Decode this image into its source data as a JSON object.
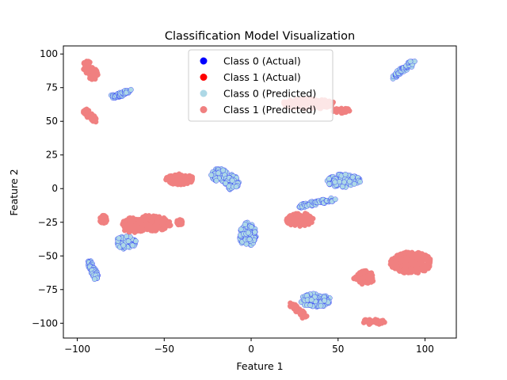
{
  "chart_data": {
    "type": "scatter",
    "title": "Classification Model Visualization",
    "xlabel": "Feature 1",
    "ylabel": "Feature 2",
    "xlim": [
      -108,
      118
    ],
    "ylim": [
      -111,
      106
    ],
    "xticks": [
      -100,
      -50,
      0,
      50,
      100
    ],
    "yticks": [
      -100,
      -75,
      -50,
      -25,
      0,
      25,
      50,
      75,
      100
    ],
    "grid": false,
    "legend_position": "top-center",
    "legend": [
      {
        "label": "Class 0 (Actual)",
        "color": "#0000ff"
      },
      {
        "label": "Class 1 (Actual)",
        "color": "#ff0000"
      },
      {
        "label": "Class 0 (Predicted)",
        "color": "#add8e6"
      },
      {
        "label": "Class 1 (Predicted)",
        "color": "#f08080"
      }
    ],
    "series": [
      {
        "name": "Class 0 (Predicted)",
        "color": "#add8e6",
        "outline": "#0000ff",
        "clusters": [
          {
            "type": "segment",
            "from": [
              -80,
              68
            ],
            "to": [
              -70,
              72
            ],
            "width": 3
          },
          {
            "type": "segment",
            "from": [
              82,
              83
            ],
            "to": [
              93,
              94
            ],
            "width": 3
          },
          {
            "type": "segment",
            "from": [
              -93,
              -55
            ],
            "to": [
              -89,
              -66
            ],
            "width": 3
          },
          {
            "type": "segment",
            "from": [
              28,
              -13
            ],
            "to": [
              47,
              -8
            ],
            "width": 3
          },
          {
            "type": "blob",
            "center": [
              -18,
              10
            ],
            "r": [
              5,
              5
            ]
          },
          {
            "type": "blob",
            "center": [
              -11,
              5
            ],
            "r": [
              4,
              6
            ]
          },
          {
            "type": "blob",
            "center": [
              53,
              6
            ],
            "r": [
              10,
              5
            ]
          },
          {
            "type": "blob",
            "center": [
              -72,
              -40
            ],
            "r": [
              6,
              5
            ]
          },
          {
            "type": "blob",
            "center": [
              -2,
              -34
            ],
            "r": [
              5,
              9
            ]
          },
          {
            "type": "blob",
            "center": [
              37,
              -83
            ],
            "r": [
              9,
              5
            ]
          }
        ]
      },
      {
        "name": "Class 1 (Predicted)",
        "color": "#f08080",
        "outline": "#f08080",
        "clusters": [
          {
            "type": "blob",
            "center": [
              -94,
              90
            ],
            "r": [
              3,
              5
            ]
          },
          {
            "type": "blob",
            "center": [
              -91,
              85
            ],
            "r": [
              3,
              4
            ]
          },
          {
            "type": "segment",
            "from": [
              -96,
              58
            ],
            "to": [
              -90,
              51
            ],
            "width": 3
          },
          {
            "type": "blob",
            "center": [
              33,
              63
            ],
            "r": [
              15,
              4
            ]
          },
          {
            "type": "blob",
            "center": [
              52,
              58
            ],
            "r": [
              5,
              2
            ]
          },
          {
            "type": "blob",
            "center": [
              -41,
              7
            ],
            "r": [
              8,
              4
            ]
          },
          {
            "type": "blob",
            "center": [
              -60,
              -26
            ],
            "r": [
              14,
              6
            ]
          },
          {
            "type": "blob",
            "center": [
              -68,
              -29
            ],
            "r": [
              6,
              4
            ]
          },
          {
            "type": "blob",
            "center": [
              -85,
              -23
            ],
            "r": [
              2,
              3
            ]
          },
          {
            "type": "blob",
            "center": [
              -41,
              -25
            ],
            "r": [
              2,
              2
            ]
          },
          {
            "type": "blob",
            "center": [
              28,
              -23
            ],
            "r": [
              8,
              5
            ]
          },
          {
            "type": "blob",
            "center": [
              92,
              -55
            ],
            "r": [
              12,
              8
            ]
          },
          {
            "type": "blob",
            "center": [
              65,
              -66
            ],
            "r": [
              6,
              5
            ]
          },
          {
            "type": "segment",
            "from": [
              23,
              -86
            ],
            "to": [
              31,
              -95
            ],
            "width": 3
          },
          {
            "type": "blob",
            "center": [
              70,
              -99
            ],
            "r": [
              7,
              2
            ]
          }
        ]
      }
    ]
  }
}
